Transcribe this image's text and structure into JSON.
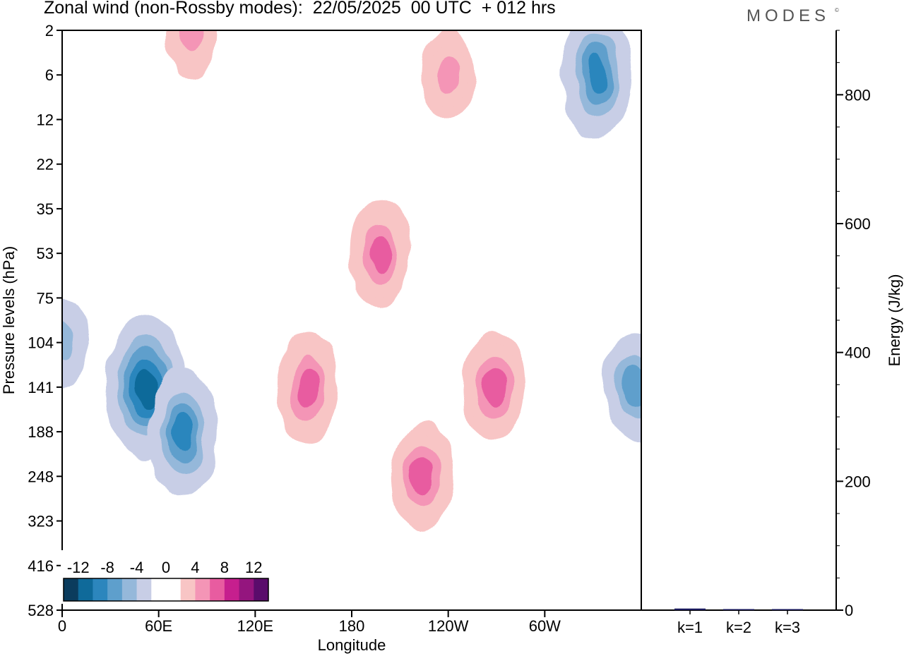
{
  "header": {
    "title": "Zonal wind (non-Rossby modes):  22/05/2025  00 UTC  + 012 hrs",
    "brand": "MODES",
    "brand_mark": "©"
  },
  "chart_data": [
    {
      "type": "heatmap",
      "title": "Zonal wind (non-Rossby modes):  22/05/2025  00 UTC  + 012 hrs",
      "xlabel": "Longitude",
      "ylabel": "Pressure levels (hPa)",
      "x_ticks": [
        "0",
        "60E",
        "120E",
        "180",
        "120W",
        "60W"
      ],
      "x_tick_degrees": [
        0,
        60,
        120,
        180,
        240,
        300
      ],
      "xlim": [
        0,
        360
      ],
      "y_ticks": [
        "2",
        "6",
        "12",
        "22",
        "35",
        "53",
        "75",
        "104",
        "141",
        "188",
        "248",
        "323",
        "416",
        "528"
      ],
      "colorbar": {
        "labels": [
          "-12",
          "-8",
          "-4",
          "0",
          "4",
          "8",
          "12"
        ],
        "levels": [
          -14,
          -12,
          -10,
          -8,
          -6,
          -4,
          -2,
          2,
          4,
          6,
          8,
          10,
          12,
          14
        ],
        "colors": [
          "#0b3c5d",
          "#0f6a9a",
          "#2c86bd",
          "#5e9fcc",
          "#95b8da",
          "#c8cee6",
          "#ffffff",
          "#ffffff",
          "#f8c5c5",
          "#f495b6",
          "#e85ca0",
          "#c61f8e",
          "#94157e",
          "#5a0c6b"
        ]
      },
      "features": [
        {
          "lon": 52,
          "level": "141",
          "value": -12
        },
        {
          "lon": 75,
          "level": "188",
          "value": -10
        },
        {
          "lon": 332,
          "level": "6",
          "value": -10
        },
        {
          "lon": 356,
          "level": "141",
          "value": -8
        },
        {
          "lon": 0,
          "level": "104",
          "value": -6
        },
        {
          "lon": 153,
          "level": "141",
          "value": 8
        },
        {
          "lon": 224,
          "level": "248",
          "value": 8
        },
        {
          "lon": 268,
          "level": "141",
          "value": 8
        },
        {
          "lon": 198,
          "level": "53",
          "value": 8
        },
        {
          "lon": 80,
          "level": "2",
          "value": 6
        },
        {
          "lon": 240,
          "level": "6",
          "value": 6
        }
      ]
    },
    {
      "type": "bar",
      "ylabel": "Energy (J/kg)",
      "ylim": [
        0,
        900
      ],
      "y_ticks": [
        "0",
        "200",
        "400",
        "600",
        "800"
      ],
      "categories": [
        "k=1",
        "k=2",
        "k=3"
      ],
      "values": [
        2.5,
        1.5,
        1.0
      ],
      "color": "#1a1a5e"
    }
  ]
}
